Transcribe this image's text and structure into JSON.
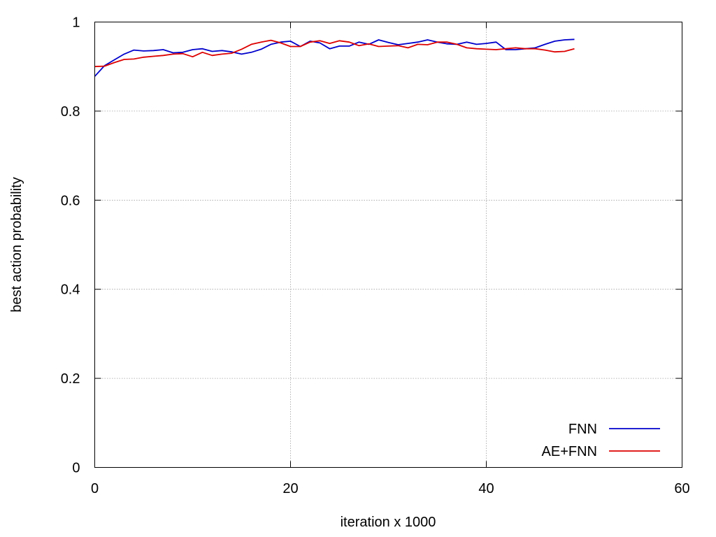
{
  "chart_data": {
    "type": "line",
    "title": "",
    "xlabel": "iteration x 1000",
    "ylabel": "best action probability",
    "xlim": [
      0,
      60
    ],
    "ylim": [
      0,
      1
    ],
    "x_ticks": [
      0,
      20,
      40,
      60
    ],
    "y_ticks": [
      0,
      0.2,
      0.4,
      0.6,
      0.8,
      1
    ],
    "x_tick_labels": [
      "0",
      "20",
      "40",
      "60"
    ],
    "y_tick_labels": [
      "0",
      "0.2",
      "0.4",
      "0.6",
      "0.8",
      "1"
    ],
    "grid": true,
    "legend_position": "bottom-right",
    "series": [
      {
        "name": "FNN",
        "color": "#0000cc",
        "x": [
          0,
          1,
          2,
          3,
          4,
          5,
          6,
          7,
          8,
          9,
          10,
          11,
          12,
          13,
          14,
          15,
          16,
          17,
          18,
          19,
          20,
          21,
          22,
          23,
          24,
          25,
          26,
          27,
          28,
          29,
          30,
          31,
          32,
          33,
          34,
          35,
          36,
          37,
          38,
          39,
          40,
          41,
          42,
          43,
          44,
          45,
          46,
          47,
          48,
          49
        ],
        "y": [
          0.878,
          0.902,
          0.915,
          0.928,
          0.937,
          0.935,
          0.936,
          0.938,
          0.931,
          0.932,
          0.938,
          0.94,
          0.934,
          0.936,
          0.933,
          0.928,
          0.932,
          0.939,
          0.95,
          0.955,
          0.957,
          0.945,
          0.957,
          0.953,
          0.94,
          0.946,
          0.946,
          0.955,
          0.95,
          0.96,
          0.954,
          0.949,
          0.952,
          0.955,
          0.96,
          0.955,
          0.951,
          0.95,
          0.955,
          0.95,
          0.952,
          0.955,
          0.938,
          0.938,
          0.94,
          0.942,
          0.95,
          0.957,
          0.96,
          0.961
        ]
      },
      {
        "name": "AE+FNN",
        "color": "#dd0000",
        "x": [
          0,
          1,
          2,
          3,
          4,
          5,
          6,
          7,
          8,
          9,
          10,
          11,
          12,
          13,
          14,
          15,
          16,
          17,
          18,
          19,
          20,
          21,
          22,
          23,
          24,
          25,
          26,
          27,
          28,
          29,
          30,
          31,
          32,
          33,
          34,
          35,
          36,
          37,
          38,
          39,
          40,
          41,
          42,
          43,
          44,
          45,
          46,
          47,
          48,
          49
        ],
        "y": [
          0.9,
          0.901,
          0.909,
          0.916,
          0.917,
          0.921,
          0.923,
          0.925,
          0.928,
          0.929,
          0.922,
          0.932,
          0.925,
          0.928,
          0.93,
          0.939,
          0.95,
          0.955,
          0.959,
          0.953,
          0.945,
          0.945,
          0.955,
          0.958,
          0.952,
          0.958,
          0.955,
          0.947,
          0.951,
          0.945,
          0.946,
          0.947,
          0.942,
          0.95,
          0.949,
          0.955,
          0.955,
          0.95,
          0.942,
          0.94,
          0.939,
          0.938,
          0.94,
          0.942,
          0.94,
          0.94,
          0.937,
          0.933,
          0.934,
          0.94
        ]
      }
    ]
  }
}
